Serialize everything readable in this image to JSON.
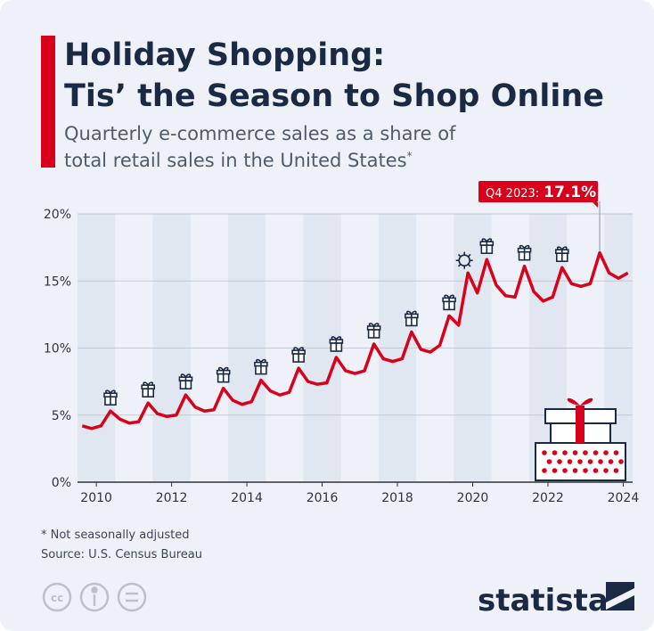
{
  "chart_data": {
    "type": "line",
    "title": [
      "Holiday Shopping:",
      "Tis’ the Season to Shop Online"
    ],
    "subtitle": [
      "Quarterly e-commerce sales as a share of",
      "total retail sales in the United States"
    ],
    "subtitle_mark": "*",
    "footnote": "* Not seasonally adjusted",
    "source": "Source: U.S. Census Bureau",
    "brand": "statista",
    "x": [
      2010.125,
      2010.375,
      2010.625,
      2010.875,
      2011.125,
      2011.375,
      2011.625,
      2011.875,
      2012.125,
      2012.375,
      2012.625,
      2012.875,
      2013.125,
      2013.375,
      2013.625,
      2013.875,
      2014.125,
      2014.375,
      2014.625,
      2014.875,
      2015.125,
      2015.375,
      2015.625,
      2015.875,
      2016.125,
      2016.375,
      2016.625,
      2016.875,
      2017.125,
      2017.375,
      2017.625,
      2017.875,
      2018.125,
      2018.375,
      2018.625,
      2018.875,
      2019.125,
      2019.375,
      2019.625,
      2019.875,
      2020.125,
      2020.375,
      2020.625,
      2020.875,
      2021.125,
      2021.375,
      2021.625,
      2021.875,
      2022.125,
      2022.375,
      2022.625,
      2022.875,
      2023.125,
      2023.375,
      2023.625,
      2023.875,
      2024.125,
      2024.375,
      2024.625
    ],
    "series": [
      {
        "color": "#d9001b",
        "values": [
          4.2,
          4.0,
          4.2,
          5.3,
          4.7,
          4.4,
          4.5,
          5.9,
          5.1,
          4.9,
          5.0,
          6.5,
          5.6,
          5.3,
          5.4,
          7.0,
          6.1,
          5.8,
          6.0,
          7.6,
          6.8,
          6.5,
          6.7,
          8.5,
          7.5,
          7.3,
          7.4,
          9.3,
          8.3,
          8.1,
          8.3,
          10.3,
          9.2,
          9.0,
          9.2,
          11.2,
          9.9,
          9.7,
          10.2,
          12.4,
          11.7,
          15.6,
          14.1,
          16.6,
          14.7,
          13.9,
          13.8,
          16.1,
          14.2,
          13.5,
          13.8,
          16.0,
          14.8,
          14.6,
          14.8,
          17.1,
          15.6,
          15.2,
          15.6
        ]
      }
    ],
    "annotation": {
      "label": "Q4 2023:",
      "value_label": "17.1%",
      "x": 2023.875
    },
    "xlim": [
      2010,
      2024.75
    ],
    "xticks": [
      {
        "value": 2010.5,
        "label": "2010"
      },
      {
        "value": 2012.5,
        "label": "2012"
      },
      {
        "value": 2014.5,
        "label": "2014"
      },
      {
        "value": 2016.5,
        "label": "2016"
      },
      {
        "value": 2018.5,
        "label": "2018"
      },
      {
        "value": 2020.5,
        "label": "2020"
      },
      {
        "value": 2022.5,
        "label": "2022"
      },
      {
        "value": 2024.5,
        "label": "2024"
      }
    ],
    "ylim": [
      0,
      20
    ],
    "yticks": [
      {
        "value": 0,
        "label": "0%"
      },
      {
        "value": 5,
        "label": "5%"
      },
      {
        "value": 10,
        "label": "10%"
      },
      {
        "value": 15,
        "label": "15%"
      },
      {
        "value": 20,
        "label": "20%"
      }
    ],
    "grid": true
  }
}
